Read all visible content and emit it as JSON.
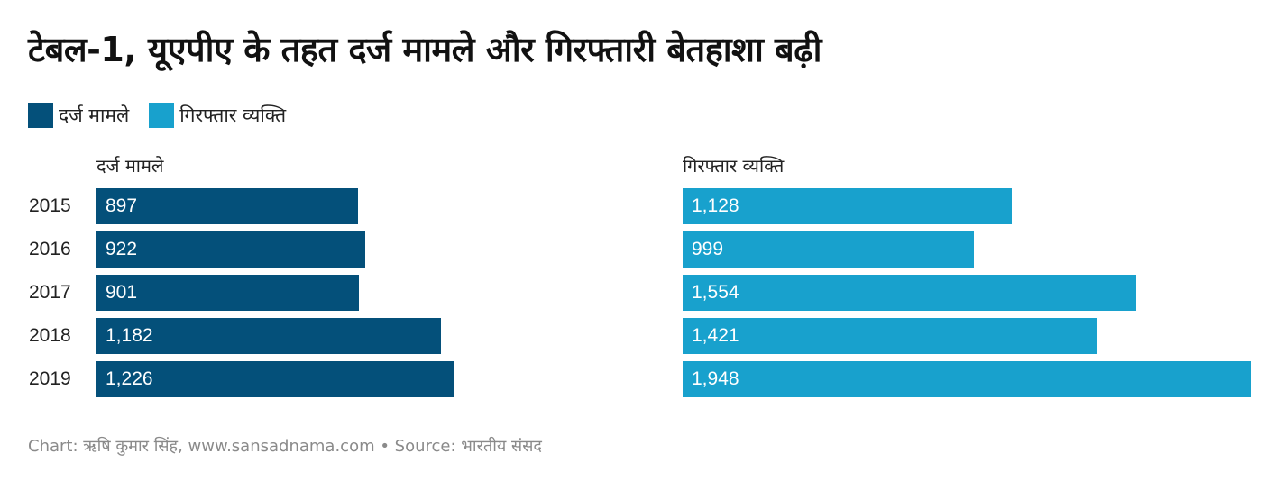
{
  "title": "टेबल-1, यूएपीए के तहत दर्ज मामले और गिरफ्तारी बेतहाशा बढ़ी",
  "legend": [
    {
      "label": "दर्ज मामले",
      "color": "#04507a"
    },
    {
      "label": "गिरफ्तार व्यक्ति",
      "color": "#18a1cd"
    }
  ],
  "footer": "Chart: ऋषि कुमार सिंह, www.sansadnama.com • Source: भारतीय संसद",
  "chart_data": {
    "type": "bar",
    "orientation": "horizontal",
    "title": "टेबल-1, यूएपीए के तहत दर्ज मामले और गिरफ्तारी बेतहाशा बढ़ी",
    "categories": [
      "2015",
      "2016",
      "2017",
      "2018",
      "2019"
    ],
    "series": [
      {
        "name": "दर्ज मामले",
        "color": "#04507a",
        "values": [
          897,
          922,
          901,
          1182,
          1226
        ],
        "labels": [
          "897",
          "922",
          "901",
          "1,182",
          "1,226"
        ]
      },
      {
        "name": "गिरफ्तार व्यक्ति",
        "color": "#18a1cd",
        "values": [
          1128,
          999,
          1554,
          1421,
          1948
        ],
        "labels": [
          "1,128",
          "999",
          "1,554",
          "1,421",
          "1,948"
        ]
      }
    ],
    "xlim": [
      0,
      1948
    ],
    "xlabel": "",
    "ylabel": "",
    "grid": false,
    "legend_position": "top-left",
    "layout": "small-multiples, shared scale"
  }
}
